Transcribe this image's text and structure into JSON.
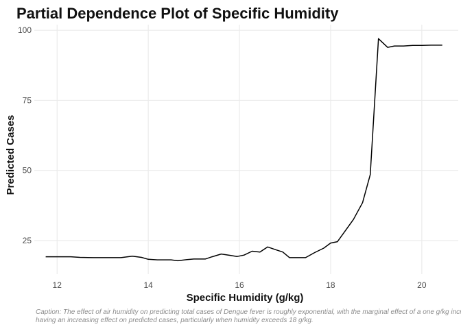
{
  "chart_data": {
    "type": "line",
    "title": "Partial Dependence Plot of Specific Humidity",
    "xlabel": "Specific Humidity (g/kg)",
    "ylabel": "Predicted Cases",
    "xlim": [
      11.5,
      20.8
    ],
    "ylim": [
      13,
      102
    ],
    "xticks": [
      12,
      14,
      16,
      18,
      20
    ],
    "yticks": [
      25,
      50,
      75,
      100
    ],
    "grid": true,
    "legend": "none",
    "caption_lines": [
      "Caption: The effect of air humidity on predicting total cases of Dengue fever is roughly exponential, with the marginal effect of a one g/kg increase in hum",
      " having an increasing effect on predicted cases, particularly when humidity exceeds 18 g/kg."
    ],
    "series": [
      {
        "color": "#000000",
        "x": [
          11.75,
          12.0,
          12.3,
          12.5,
          12.8,
          13.0,
          13.4,
          13.65,
          13.85,
          14.0,
          14.2,
          14.5,
          14.65,
          14.85,
          15.0,
          15.25,
          15.4,
          15.6,
          15.8,
          15.95,
          16.1,
          16.28,
          16.45,
          16.62,
          16.8,
          16.95,
          17.1,
          17.25,
          17.45,
          17.65,
          17.85,
          18.0,
          18.15,
          18.3,
          18.5,
          18.7,
          18.87,
          19.05,
          19.25,
          19.4,
          19.6,
          19.8,
          20.0,
          20.2,
          20.45
        ],
        "y": [
          19.2,
          19.2,
          19.2,
          19.0,
          18.9,
          18.9,
          18.9,
          19.4,
          19.0,
          18.3,
          18.1,
          18.1,
          17.8,
          18.2,
          18.4,
          18.4,
          19.2,
          20.2,
          19.7,
          19.3,
          19.8,
          21.2,
          20.9,
          22.7,
          21.7,
          20.9,
          18.9,
          18.9,
          18.9,
          20.7,
          22.3,
          24.1,
          24.6,
          28.0,
          32.5,
          38.5,
          48.5,
          97.0,
          93.9,
          94.4,
          94.4,
          94.6,
          94.6,
          94.7,
          94.7
        ]
      }
    ]
  }
}
